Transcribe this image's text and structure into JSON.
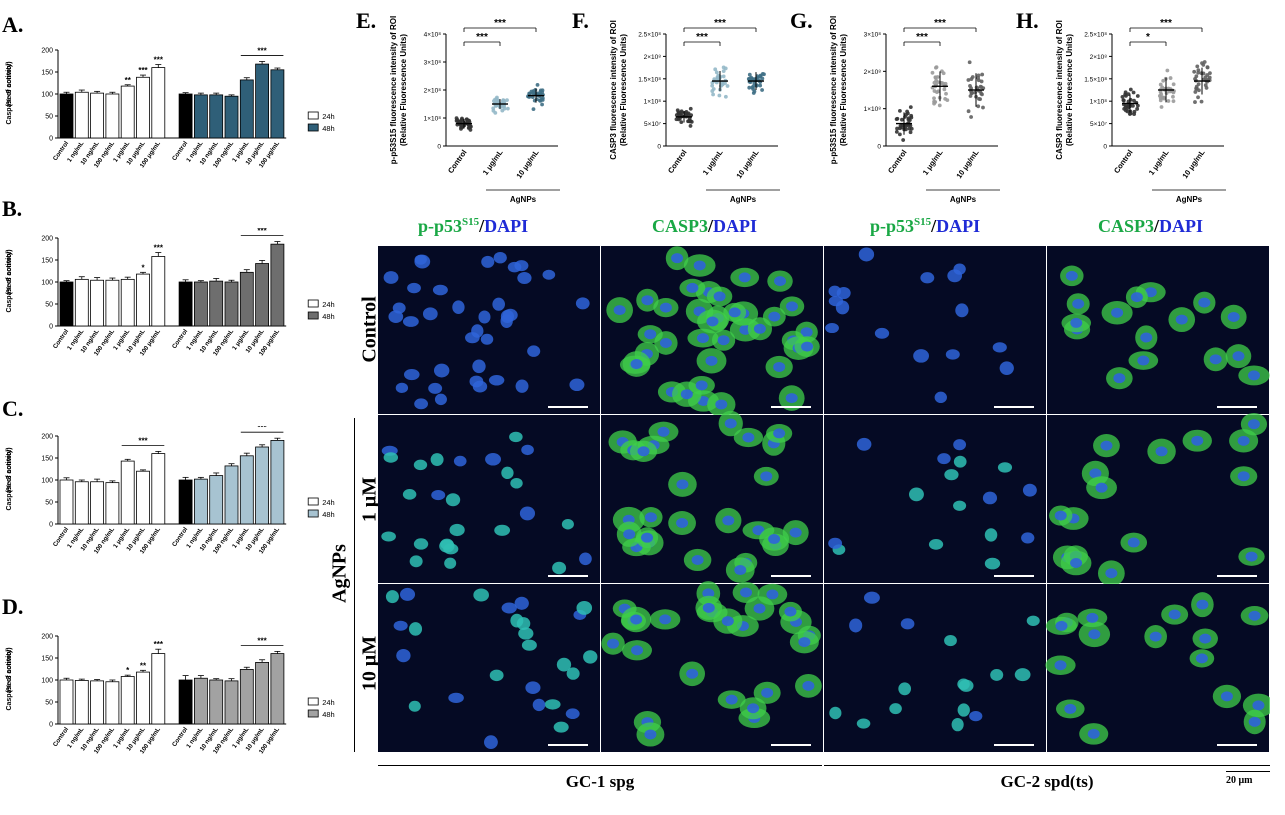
{
  "figure": {
    "panel_letters": [
      "A.",
      "B.",
      "C.",
      "D.",
      "E.",
      "F.",
      "G.",
      "H."
    ],
    "column_headers": [
      {
        "green": "p-p53",
        "sup": "S15",
        "slash": "/",
        "blue": "DAPI"
      },
      {
        "green": "CASP3",
        "sup": "",
        "slash": "/",
        "blue": "DAPI"
      },
      {
        "green": "p-p53",
        "sup": "S15",
        "slash": "/",
        "blue": "DAPI"
      },
      {
        "green": "CASP3",
        "sup": "",
        "slash": "/",
        "blue": "DAPI"
      }
    ],
    "row_labels": [
      "Control",
      "1 μM",
      "10 μM"
    ],
    "group_label": "AgNPs",
    "cell_lines": [
      "GC-1 spg",
      "GC-2 spd(ts)"
    ],
    "scale_label": "20 μm",
    "colors": {
      "green": "#1aa845",
      "blue": "#1f2bd6",
      "micro_bg": "#050a24",
      "nuclei": "#2f64d9",
      "casp": "#3fcf4a"
    }
  },
  "chart_data": [
    {
      "id": "A",
      "type": "bar",
      "ylabel": "Caspase-9 activity (% of control)",
      "ylim": [
        0,
        200
      ],
      "yticks": [
        0,
        50,
        100,
        150,
        200
      ],
      "categories": [
        "Control",
        "1 ng/mL",
        "10 ng/mL",
        "100 ng/mL",
        "1 μg/mL",
        "10 μg/mL",
        "100 μg/mL"
      ],
      "series": [
        {
          "name": "24h",
          "color": "#ffffff",
          "first_color": "#000000",
          "values": [
            100,
            104,
            102,
            100,
            118,
            138,
            160
          ],
          "errors": [
            4,
            5,
            4,
            4,
            3,
            5,
            7
          ]
        },
        {
          "name": "48h",
          "color": "#2f5f78",
          "first_color": "#000000",
          "values": [
            100,
            98,
            98,
            95,
            132,
            168,
            155
          ],
          "errors": [
            3,
            4,
            4,
            3,
            5,
            6,
            4
          ]
        }
      ],
      "significance": {
        "24h": [
          "",
          "",
          "",
          "",
          "**",
          "***",
          "***"
        ],
        "48h_line": "***"
      }
    },
    {
      "id": "B",
      "type": "bar",
      "ylabel": "Caspase-8 activity (% of control)",
      "ylim": [
        0,
        200
      ],
      "yticks": [
        0,
        50,
        100,
        150,
        200
      ],
      "categories": [
        "Control",
        "1 ng/mL",
        "10 ng/mL",
        "100 ng/mL",
        "1 μg/mL",
        "10 μg/mL",
        "100 μg/mL"
      ],
      "series": [
        {
          "name": "24h",
          "color": "#ffffff",
          "first_color": "#000000",
          "values": [
            100,
            106,
            104,
            104,
            106,
            118,
            158
          ],
          "errors": [
            3,
            6,
            6,
            5,
            5,
            4,
            9
          ]
        },
        {
          "name": "48h",
          "color": "#6e6e6e",
          "first_color": "#000000",
          "values": [
            100,
            100,
            102,
            100,
            122,
            142,
            186
          ],
          "errors": [
            5,
            3,
            6,
            4,
            6,
            7,
            6
          ]
        }
      ],
      "significance": {
        "24h": [
          "",
          "",
          "",
          "",
          "",
          "*",
          "***"
        ],
        "48h_line": "***"
      }
    },
    {
      "id": "C",
      "type": "bar",
      "ylabel": "Caspase-3 activity (% of control)",
      "ylim": [
        0,
        200
      ],
      "yticks": [
        0,
        50,
        100,
        150,
        200
      ],
      "categories": [
        "Control",
        "1 ng/mL",
        "10 ng/mL",
        "100 ng/mL",
        "1 μg/mL",
        "10 μg/mL",
        "100 μg/mL"
      ],
      "series": [
        {
          "name": "24h",
          "color": "#ffffff",
          "first_color": "#ffffff",
          "values": [
            100,
            96,
            96,
            94,
            143,
            120,
            160
          ],
          "errors": [
            5,
            4,
            6,
            4,
            4,
            3,
            5
          ]
        },
        {
          "name": "48h",
          "color": "#a7c3d1",
          "first_color": "#000000",
          "values": [
            100,
            102,
            110,
            132,
            155,
            175,
            190
          ],
          "errors": [
            6,
            4,
            6,
            5,
            6,
            5,
            5
          ]
        }
      ],
      "significance": {
        "24h_line": "***",
        "48h_line": "***"
      }
    },
    {
      "id": "D",
      "type": "bar",
      "ylabel": "Caspase-3 activity (% of control)",
      "ylim": [
        0,
        200
      ],
      "yticks": [
        0,
        50,
        100,
        150,
        200
      ],
      "categories": [
        "Control",
        "1 ng/mL",
        "10 ng/mL",
        "100 ng/mL",
        "1 μg/mL",
        "10 μg/mL",
        "100 μg/mL"
      ],
      "series": [
        {
          "name": "24h",
          "color": "#ffffff",
          "first_color": "#ffffff",
          "values": [
            100,
            99,
            98,
            96,
            108,
            118,
            160
          ],
          "errors": [
            4,
            3,
            3,
            4,
            3,
            4,
            10
          ]
        },
        {
          "name": "48h",
          "color": "#a2a2a2",
          "first_color": "#000000",
          "values": [
            100,
            104,
            100,
            98,
            124,
            140,
            160
          ],
          "errors": [
            10,
            6,
            3,
            5,
            5,
            6,
            5
          ]
        }
      ],
      "significance": {
        "24h": [
          "",
          "",
          "",
          "",
          "*",
          "**",
          "***"
        ],
        "48h_line": "***"
      }
    },
    {
      "id": "E",
      "type": "scatter",
      "ylabel": "p-p53S15 fluorescence intensity of ROI (Relative Fluorescence Units)",
      "ytick_labels": [
        "0",
        "1×10⁸",
        "2×10⁸",
        "3×10⁸",
        "4×10⁸"
      ],
      "ylim": [
        0,
        4
      ],
      "categories": [
        "Control",
        "1 μg/mL",
        "10 μg/mL"
      ],
      "xgroup": "AgNPs",
      "means": [
        0.8,
        1.5,
        1.8
      ],
      "spread": [
        0.35,
        0.35,
        0.5
      ],
      "colors": [
        "#333333",
        "#93b8c8",
        "#3f6f85"
      ],
      "significance": [
        "***",
        "***"
      ]
    },
    {
      "id": "F",
      "type": "scatter",
      "ylabel": "CASP3 fluorescence intensity of ROI (Relative Fluorescence Units)",
      "ytick_labels": [
        "0",
        "5×10⁷",
        "1×10⁸",
        "1.5×10⁸",
        "2×10⁸",
        "2.5×10⁸"
      ],
      "ylim": [
        0,
        2.5
      ],
      "categories": [
        "Control",
        "1 μg/mL",
        "10 μg/mL"
      ],
      "xgroup": "AgNPs",
      "means": [
        0.65,
        1.45,
        1.45
      ],
      "spread": [
        0.25,
        0.45,
        0.4
      ],
      "colors": [
        "#333333",
        "#93b8c8",
        "#3f6f85"
      ],
      "significance": [
        "***",
        "***"
      ]
    },
    {
      "id": "G",
      "type": "scatter",
      "ylabel": "p-p53S15 fluorescence intensity of ROI (Relative Fluorescence Units)",
      "ytick_labels": [
        "0",
        "1×10⁸",
        "2×10⁸",
        "3×10⁸"
      ],
      "ylim": [
        0,
        3
      ],
      "categories": [
        "Control",
        "1 μg/mL",
        "10 μg/mL"
      ],
      "xgroup": "AgNPs",
      "means": [
        0.6,
        1.6,
        1.5
      ],
      "spread": [
        0.6,
        0.8,
        0.9
      ],
      "colors": [
        "#333333",
        "#9a9a9a",
        "#606060"
      ],
      "significance": [
        "***",
        "***"
      ]
    },
    {
      "id": "H",
      "type": "scatter",
      "ylabel": "CASP3 fluorescence intensity of ROI (Relative Fluorescence Units)",
      "ytick_labels": [
        "0",
        "5×10⁷",
        "1×10⁸",
        "1.5×10⁸",
        "2×10⁸",
        "2.5×10⁸"
      ],
      "ylim": [
        0,
        2.5
      ],
      "categories": [
        "Control",
        "1 μg/mL",
        "10 μg/mL"
      ],
      "xgroup": "AgNPs",
      "means": [
        0.95,
        1.25,
        1.45
      ],
      "spread": [
        0.4,
        0.55,
        0.6
      ],
      "colors": [
        "#333333",
        "#9a9a9a",
        "#606060"
      ],
      "significance": [
        "*",
        "***"
      ]
    }
  ]
}
